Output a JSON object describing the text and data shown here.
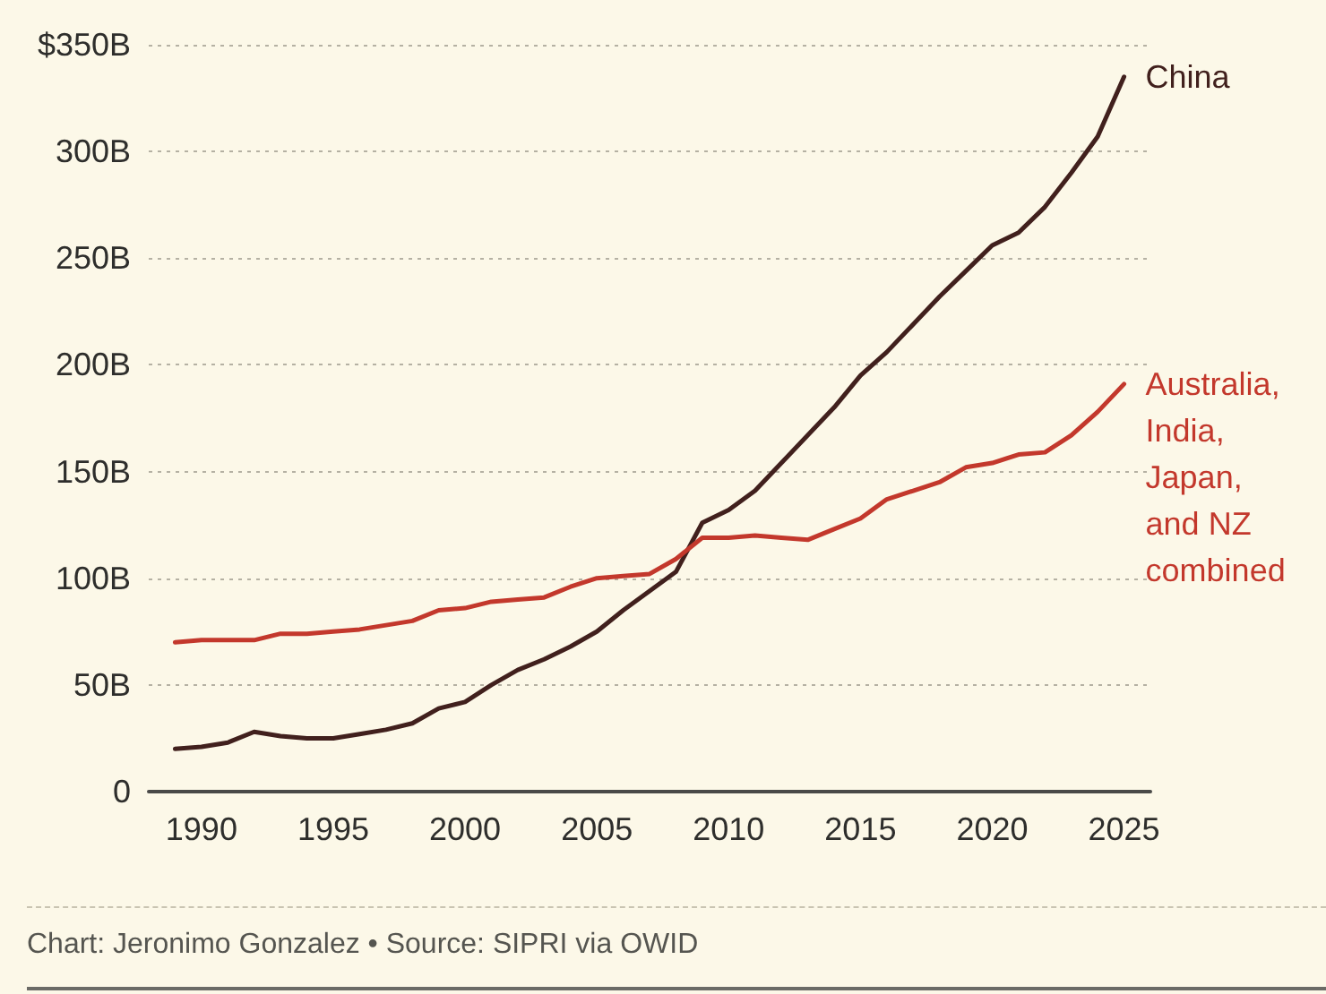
{
  "chart_data": {
    "type": "line",
    "x": [
      1989,
      1990,
      1991,
      1992,
      1993,
      1994,
      1995,
      1996,
      1997,
      1998,
      1999,
      2000,
      2001,
      2002,
      2003,
      2004,
      2005,
      2006,
      2007,
      2008,
      2009,
      2010,
      2011,
      2012,
      2013,
      2014,
      2015,
      2016,
      2017,
      2018,
      2019,
      2020,
      2021,
      2022,
      2023,
      2024,
      2025
    ],
    "series": [
      {
        "name": "China",
        "color": "#41201d",
        "values": [
          20,
          21,
          23,
          28,
          26,
          25,
          25,
          27,
          29,
          32,
          39,
          42,
          50,
          57,
          62,
          68,
          75,
          85,
          94,
          103,
          126,
          132,
          141,
          154,
          167,
          180,
          195,
          206,
          219,
          232,
          244,
          256,
          262,
          274,
          290,
          307,
          335
        ]
      },
      {
        "name": "Australia, India, Japan, and NZ combined",
        "color": "#c3382c",
        "values": [
          70,
          71,
          71,
          71,
          74,
          74,
          75,
          76,
          78,
          80,
          85,
          86,
          89,
          90,
          91,
          96,
          100,
          101,
          102,
          109,
          119,
          119,
          120,
          119,
          118,
          123,
          128,
          137,
          141,
          145,
          152,
          154,
          158,
          159,
          167,
          178,
          191
        ]
      }
    ],
    "xlim": [
      1988,
      2026
    ],
    "xticks": [
      1990,
      1995,
      2000,
      2005,
      2010,
      2015,
      2020,
      2025
    ],
    "ylim": [
      0,
      350
    ],
    "yticks": [
      0,
      {
        "value": 50,
        "label": "50B"
      },
      {
        "value": 100,
        "label": "100B"
      },
      {
        "value": 150,
        "label": "150B"
      },
      {
        "value": 200,
        "label": "200B"
      },
      {
        "value": 250,
        "label": "250B"
      },
      {
        "value": 300,
        "label": "300B"
      },
      {
        "value": 350,
        "label": "$350B"
      }
    ],
    "grid": "y",
    "marker": "none",
    "annotations": [
      "Chart: Jeronimo Gonzalez • Source: SIPRI via OWID"
    ]
  }
}
